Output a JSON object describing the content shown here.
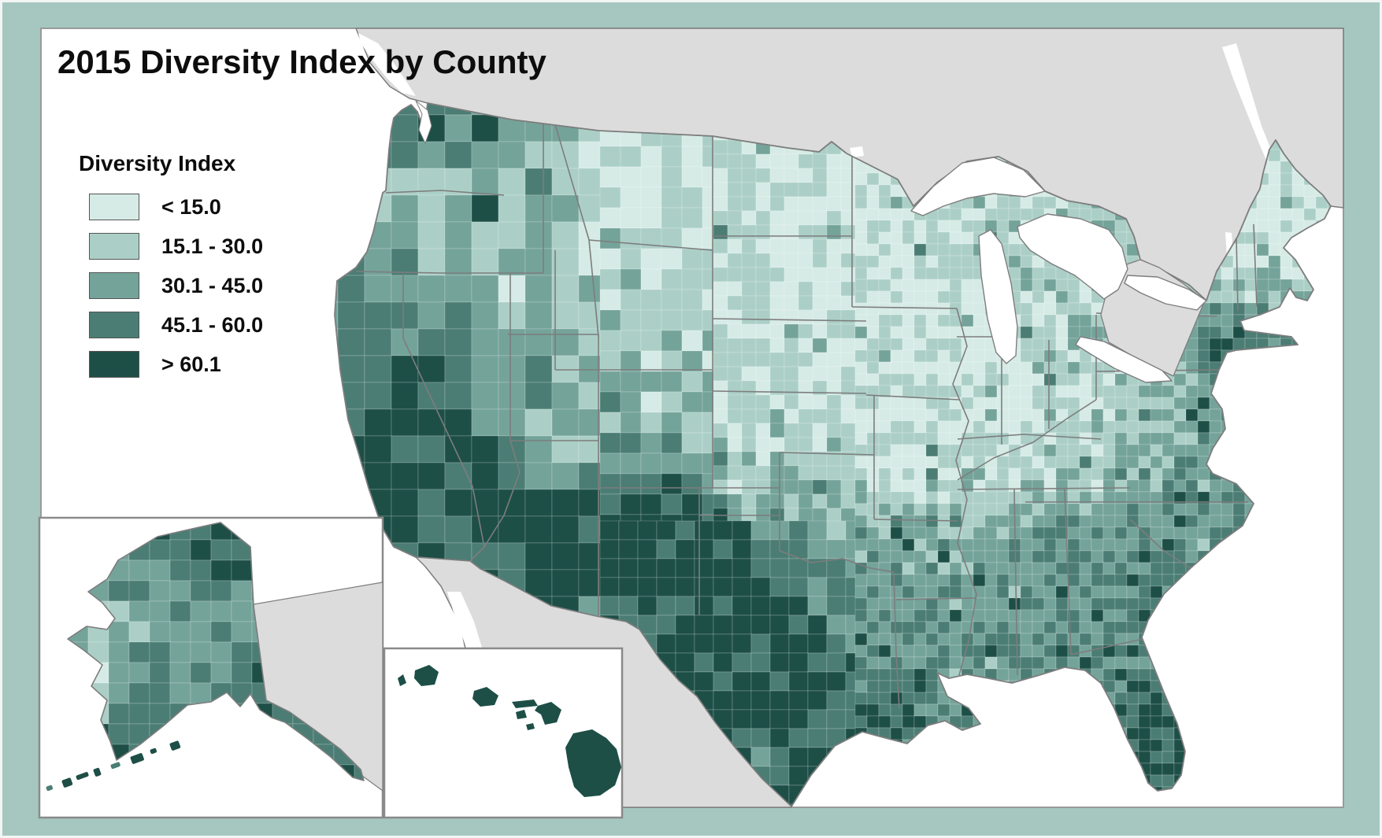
{
  "title": "2015 Diversity Index by County",
  "legend": {
    "title": "Diversity Index",
    "items": [
      {
        "label": "< 15.0",
        "color": "#d6ebe5"
      },
      {
        "label": "15.1 - 30.0",
        "color": "#abcfc6"
      },
      {
        "label": "30.1 - 45.0",
        "color": "#74a39a"
      },
      {
        "label": "45.1 - 60.0",
        "color": "#4b7d74"
      },
      {
        "label": "> 60.1",
        "color": "#1d4f47"
      }
    ]
  },
  "map": {
    "type": "choropleth",
    "year": "2015",
    "variable": "Diversity Index",
    "geography": "United States counties",
    "insets": [
      {
        "name": "Alaska"
      },
      {
        "name": "Hawaii"
      }
    ],
    "colors": {
      "frame": "#a5c7c0",
      "neighboring_land": "#dcdcdc",
      "water": "#ffffff",
      "state_border": "#7d7d7d",
      "coast_border": "#7d7d7d",
      "content_border": "#9a9a9a",
      "county_border": "rgba(255,255,255,0.4)"
    }
  }
}
